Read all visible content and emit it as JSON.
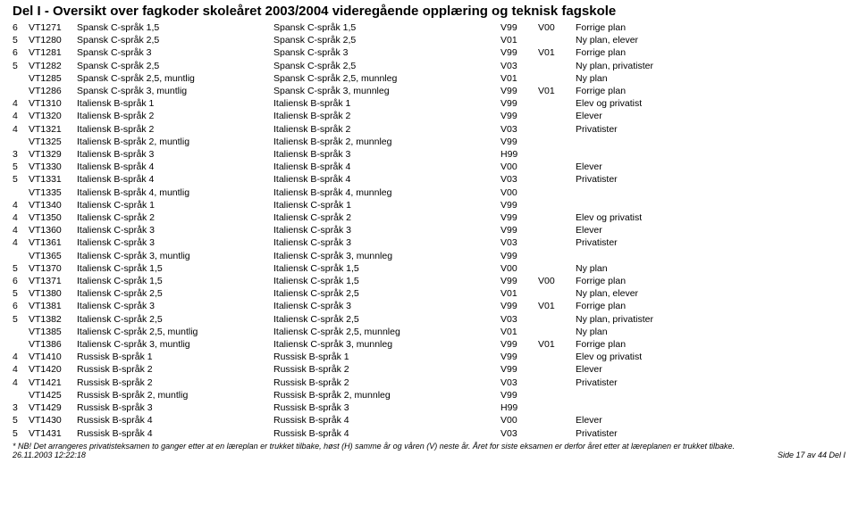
{
  "title": "Del I - Oversikt over fagkoder skoleåret 2003/2004 videregående opplæring og teknisk fagskole",
  "rows": [
    {
      "n": "6",
      "code": "VT1271",
      "name": "Spansk C-språk 1,5",
      "desc": "Spansk C-språk 1,5",
      "v1": "V99",
      "v2": "V00",
      "note": "Forrige plan"
    },
    {
      "n": "5",
      "code": "VT1280",
      "name": "Spansk C-språk 2,5",
      "desc": "Spansk C-språk 2,5",
      "v1": "V01",
      "v2": "",
      "note": "Ny plan, elever"
    },
    {
      "n": "6",
      "code": "VT1281",
      "name": "Spansk C-språk 3",
      "desc": "Spansk C-språk 3",
      "v1": "V99",
      "v2": "V01",
      "note": "Forrige plan"
    },
    {
      "n": "5",
      "code": "VT1282",
      "name": "Spansk C-språk 2,5",
      "desc": "Spansk C-språk 2,5",
      "v1": "V03",
      "v2": "",
      "note": "Ny plan, privatister"
    },
    {
      "n": "",
      "code": "VT1285",
      "name": "Spansk C-språk 2,5, muntlig",
      "desc": "Spansk C-språk 2,5, munnleg",
      "v1": "V01",
      "v2": "",
      "note": "Ny plan"
    },
    {
      "n": "",
      "code": "VT1286",
      "name": "Spansk C-språk 3, muntlig",
      "desc": "Spansk C-språk 3, munnleg",
      "v1": "V99",
      "v2": "V01",
      "note": "Forrige plan"
    },
    {
      "n": "4",
      "code": "VT1310",
      "name": "Italiensk B-språk 1",
      "desc": "Italiensk B-språk 1",
      "v1": "V99",
      "v2": "",
      "note": "Elev og privatist"
    },
    {
      "n": "4",
      "code": "VT1320",
      "name": "Italiensk B-språk 2",
      "desc": "Italiensk B-språk 2",
      "v1": "V99",
      "v2": "",
      "note": "Elever"
    },
    {
      "n": "4",
      "code": "VT1321",
      "name": "Italiensk B-språk 2",
      "desc": "Italiensk B-språk 2",
      "v1": "V03",
      "v2": "",
      "note": "Privatister"
    },
    {
      "n": "",
      "code": "VT1325",
      "name": "Italiensk B-språk 2, muntlig",
      "desc": "Italiensk B-språk 2, munnleg",
      "v1": "V99",
      "v2": "",
      "note": ""
    },
    {
      "n": "3",
      "code": "VT1329",
      "name": "Italiensk B-språk 3",
      "desc": "Italiensk B-språk 3",
      "v1": "H99",
      "v2": "",
      "note": ""
    },
    {
      "n": "5",
      "code": "VT1330",
      "name": "Italiensk B-språk 4",
      "desc": "Italiensk B-språk 4",
      "v1": "V00",
      "v2": "",
      "note": "Elever"
    },
    {
      "n": "5",
      "code": "VT1331",
      "name": "Italiensk B-språk 4",
      "desc": "Italiensk B-språk 4",
      "v1": "V03",
      "v2": "",
      "note": "Privatister"
    },
    {
      "n": "",
      "code": "VT1335",
      "name": "Italiensk B-språk 4, muntlig",
      "desc": "Italiensk B-språk 4, munnleg",
      "v1": "V00",
      "v2": "",
      "note": ""
    },
    {
      "n": "4",
      "code": "VT1340",
      "name": "Italiensk C-språk 1",
      "desc": "Italiensk C-språk 1",
      "v1": "V99",
      "v2": "",
      "note": ""
    },
    {
      "n": "4",
      "code": "VT1350",
      "name": "Italiensk C-språk 2",
      "desc": "Italiensk C-språk 2",
      "v1": "V99",
      "v2": "",
      "note": "Elev og privatist"
    },
    {
      "n": "4",
      "code": "VT1360",
      "name": "Italiensk C-språk 3",
      "desc": "Italiensk C-språk 3",
      "v1": "V99",
      "v2": "",
      "note": "Elever"
    },
    {
      "n": "4",
      "code": "VT1361",
      "name": "Italiensk C-språk 3",
      "desc": "Italiensk C-språk 3",
      "v1": "V03",
      "v2": "",
      "note": "Privatister"
    },
    {
      "n": "",
      "code": "VT1365",
      "name": "Italiensk C-språk 3, muntlig",
      "desc": "Italiensk C-språk 3, munnleg",
      "v1": "V99",
      "v2": "",
      "note": ""
    },
    {
      "n": "5",
      "code": "VT1370",
      "name": "Italiensk C-språk 1,5",
      "desc": "Italiensk C-språk 1,5",
      "v1": "V00",
      "v2": "",
      "note": "Ny plan"
    },
    {
      "n": "6",
      "code": "VT1371",
      "name": "Italiensk C-språk 1,5",
      "desc": "Italiensk C-språk 1,5",
      "v1": "V99",
      "v2": "V00",
      "note": "Forrige plan"
    },
    {
      "n": "5",
      "code": "VT1380",
      "name": "Italiensk C-språk 2,5",
      "desc": "Italiensk C-språk 2,5",
      "v1": "V01",
      "v2": "",
      "note": "Ny plan, elever"
    },
    {
      "n": "6",
      "code": "VT1381",
      "name": "Italiensk C-språk 3",
      "desc": "Italiensk C-språk 3",
      "v1": "V99",
      "v2": "V01",
      "note": "Forrige plan"
    },
    {
      "n": "5",
      "code": "VT1382",
      "name": "Italiensk C-språk 2,5",
      "desc": "Italiensk C-språk 2,5",
      "v1": "V03",
      "v2": "",
      "note": "Ny plan, privatister"
    },
    {
      "n": "",
      "code": "VT1385",
      "name": "Italiensk C-språk 2,5, muntlig",
      "desc": "Italiensk C-språk 2,5, munnleg",
      "v1": "V01",
      "v2": "",
      "note": "Ny plan"
    },
    {
      "n": "",
      "code": "VT1386",
      "name": "Italiensk C-språk 3, muntlig",
      "desc": "Italiensk C-språk 3, munnleg",
      "v1": "V99",
      "v2": "V01",
      "note": "Forrige plan"
    },
    {
      "n": "4",
      "code": "VT1410",
      "name": "Russisk B-språk 1",
      "desc": "Russisk B-språk 1",
      "v1": "V99",
      "v2": "",
      "note": "Elev og privatist"
    },
    {
      "n": "4",
      "code": "VT1420",
      "name": "Russisk B-språk 2",
      "desc": "Russisk B-språk 2",
      "v1": "V99",
      "v2": "",
      "note": "Elever"
    },
    {
      "n": "4",
      "code": "VT1421",
      "name": "Russisk B-språk 2",
      "desc": "Russisk B-språk 2",
      "v1": "V03",
      "v2": "",
      "note": "Privatister"
    },
    {
      "n": "",
      "code": "VT1425",
      "name": "Russisk B-språk 2, muntlig",
      "desc": "Russisk B-språk 2, munnleg",
      "v1": "V99",
      "v2": "",
      "note": ""
    },
    {
      "n": "3",
      "code": "VT1429",
      "name": "Russisk B-språk 3",
      "desc": "Russisk B-språk 3",
      "v1": "H99",
      "v2": "",
      "note": ""
    },
    {
      "n": "5",
      "code": "VT1430",
      "name": "Russisk B-språk 4",
      "desc": "Russisk B-språk 4",
      "v1": "V00",
      "v2": "",
      "note": "Elever"
    },
    {
      "n": "5",
      "code": "VT1431",
      "name": "Russisk B-språk 4",
      "desc": "Russisk B-språk 4",
      "v1": "V03",
      "v2": "",
      "note": "Privatister"
    }
  ],
  "footer": {
    "line1": "* NB! Det arrangeres privatisteksamen to ganger etter at en læreplan er trukket tilbake, høst (H) samme år og våren (V) neste år. Året for siste eksamen er derfor året etter at læreplanen er trukket tilbake.",
    "date": "26.11.2003 12:22:18",
    "page": "Side 17 av 44 Del I"
  },
  "style": {
    "title_fontsize": 15,
    "row_fontsize": 10.5,
    "footer_fontsize": 9,
    "text_color": "#000000",
    "background": "#ffffff"
  }
}
